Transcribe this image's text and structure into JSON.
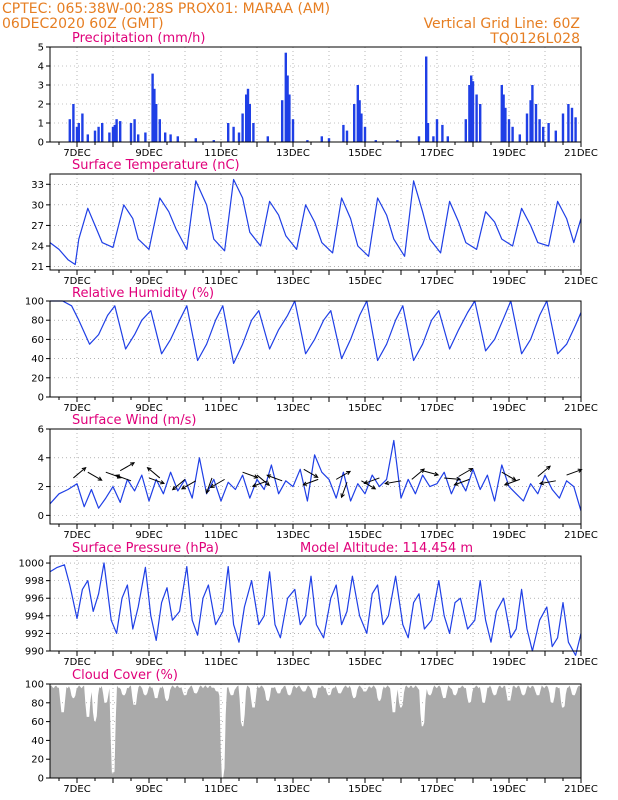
{
  "header": {
    "line1_left": "CPTEC:   065:38W-00:28S   PROX01: MARAA (AM)",
    "line2_left": "06DEC2020 60Z (GMT)",
    "line2_right": "Vertical Grid Line: 60Z",
    "line3_right": "TQ0126L028"
  },
  "colors": {
    "header": "#e67e22",
    "title": "#e0007a",
    "series": "#1f3fe6",
    "cloud": "#aaaaaa",
    "grid": "#888888"
  },
  "x_ticks": [
    "7DEC",
    "9DEC",
    "11DEC",
    "13DEC",
    "15DEC",
    "17DEC",
    "19DEC",
    "21DEC"
  ],
  "chart_data": [
    {
      "type": "bar",
      "name": "precip",
      "title": "Precipitation (mm/h)",
      "ylim": [
        0,
        5
      ],
      "yticks": [
        "0",
        "1",
        "2",
        "3",
        "4",
        "5"
      ],
      "x_range_days": [
        6.25,
        21
      ],
      "color": "#1f3fe6",
      "events": [
        [
          6.8,
          1.2
        ],
        [
          6.9,
          2.0
        ],
        [
          7.0,
          0.8
        ],
        [
          7.05,
          1.0
        ],
        [
          7.15,
          1.5
        ],
        [
          7.3,
          0.4
        ],
        [
          7.5,
          0.6
        ],
        [
          7.6,
          0.8
        ],
        [
          7.7,
          1.0
        ],
        [
          7.9,
          0.5
        ],
        [
          8.0,
          0.8
        ],
        [
          8.05,
          0.9
        ],
        [
          8.1,
          1.2
        ],
        [
          8.2,
          1.1
        ],
        [
          8.5,
          1.0
        ],
        [
          8.6,
          1.2
        ],
        [
          8.7,
          0.4
        ],
        [
          8.9,
          0.5
        ],
        [
          9.1,
          3.6
        ],
        [
          9.15,
          2.8
        ],
        [
          9.2,
          2.0
        ],
        [
          9.3,
          1.2
        ],
        [
          9.45,
          0.5
        ],
        [
          9.6,
          0.4
        ],
        [
          9.8,
          0.3
        ],
        [
          10.3,
          0.2
        ],
        [
          10.8,
          0.1
        ],
        [
          11.2,
          1.0
        ],
        [
          11.35,
          0.8
        ],
        [
          11.5,
          0.5
        ],
        [
          11.6,
          1.5
        ],
        [
          11.7,
          2.5
        ],
        [
          11.75,
          2.8
        ],
        [
          11.8,
          2.0
        ],
        [
          11.9,
          1.0
        ],
        [
          12.3,
          0.3
        ],
        [
          12.7,
          2.2
        ],
        [
          12.8,
          4.7
        ],
        [
          12.85,
          3.5
        ],
        [
          12.9,
          2.5
        ],
        [
          13.0,
          1.2
        ],
        [
          13.4,
          0.1
        ],
        [
          13.8,
          0.3
        ],
        [
          14.0,
          0.2
        ],
        [
          14.4,
          0.9
        ],
        [
          14.5,
          0.6
        ],
        [
          14.7,
          2.0
        ],
        [
          14.8,
          3.0
        ],
        [
          14.85,
          2.2
        ],
        [
          14.9,
          1.5
        ],
        [
          15.0,
          0.8
        ],
        [
          15.3,
          0.1
        ],
        [
          15.9,
          0.1
        ],
        [
          16.5,
          0.3
        ],
        [
          16.7,
          4.5
        ],
        [
          16.75,
          1.0
        ],
        [
          16.9,
          0.3
        ],
        [
          17.0,
          1.2
        ],
        [
          17.15,
          0.9
        ],
        [
          17.3,
          0.3
        ],
        [
          17.8,
          1.2
        ],
        [
          17.9,
          3.0
        ],
        [
          17.95,
          3.5
        ],
        [
          18.0,
          3.2
        ],
        [
          18.1,
          2.5
        ],
        [
          18.2,
          2.0
        ],
        [
          18.8,
          3.0
        ],
        [
          18.85,
          2.5
        ],
        [
          18.9,
          1.8
        ],
        [
          19.0,
          1.2
        ],
        [
          19.1,
          0.8
        ],
        [
          19.3,
          0.4
        ],
        [
          19.5,
          1.5
        ],
        [
          19.6,
          2.2
        ],
        [
          19.65,
          3.0
        ],
        [
          19.75,
          2.0
        ],
        [
          19.85,
          1.2
        ],
        [
          19.95,
          0.8
        ],
        [
          20.1,
          1.0
        ],
        [
          20.3,
          0.6
        ],
        [
          20.5,
          1.5
        ],
        [
          20.65,
          2.0
        ],
        [
          20.75,
          1.8
        ],
        [
          20.85,
          1.3
        ]
      ]
    },
    {
      "type": "line",
      "name": "temperature",
      "title": "Surface Temperature (nC)",
      "ylim": [
        20.5,
        34.5
      ],
      "yticks": [
        "21",
        "24",
        "27",
        "30",
        "33"
      ],
      "x_range_days": [
        6.25,
        21
      ],
      "color": "#1f3fe6",
      "x": [
        6.25,
        6.5,
        6.75,
        6.95,
        7.05,
        7.3,
        7.5,
        7.7,
        8.0,
        8.3,
        8.55,
        8.7,
        9.0,
        9.3,
        9.55,
        9.75,
        10.05,
        10.3,
        10.6,
        10.8,
        11.1,
        11.35,
        11.6,
        11.8,
        12.1,
        12.35,
        12.6,
        12.8,
        13.1,
        13.35,
        13.6,
        13.8,
        14.1,
        14.35,
        14.6,
        14.8,
        15.1,
        15.35,
        15.6,
        15.8,
        16.1,
        16.35,
        16.6,
        16.8,
        17.1,
        17.35,
        17.6,
        17.8,
        18.1,
        18.35,
        18.6,
        18.8,
        19.1,
        19.35,
        19.6,
        19.8,
        20.1,
        20.35,
        20.6,
        20.8,
        21.0
      ],
      "y": [
        24.5,
        23.5,
        22.0,
        21.3,
        25.0,
        29.5,
        27.0,
        24.5,
        23.8,
        30.0,
        28.0,
        25.0,
        23.5,
        31.0,
        29.0,
        26.5,
        23.5,
        33.5,
        30.0,
        25.0,
        23.3,
        33.7,
        31.0,
        26.0,
        24.0,
        30.5,
        28.5,
        25.5,
        23.5,
        30.0,
        27.5,
        24.5,
        23.0,
        31.0,
        28.0,
        24.0,
        22.5,
        31.0,
        28.5,
        25.0,
        22.5,
        33.5,
        29.0,
        25.0,
        23.0,
        30.5,
        27.5,
        24.5,
        23.5,
        29.0,
        27.5,
        25.0,
        24.0,
        29.5,
        27.0,
        24.5,
        24.0,
        30.5,
        28.0,
        24.5,
        28.0
      ]
    },
    {
      "type": "line",
      "name": "humidity",
      "title": "Relative Humidity (%)",
      "ylim": [
        0,
        100
      ],
      "yticks": [
        "0",
        "20",
        "40",
        "60",
        "80",
        "100"
      ],
      "x_range_days": [
        6.25,
        21
      ],
      "color": "#1f3fe6",
      "x": [
        6.25,
        6.6,
        6.85,
        7.05,
        7.35,
        7.6,
        7.85,
        8.05,
        8.35,
        8.6,
        8.8,
        9.05,
        9.35,
        9.6,
        9.85,
        10.05,
        10.35,
        10.6,
        10.85,
        11.05,
        11.35,
        11.6,
        11.85,
        12.05,
        12.35,
        12.6,
        12.85,
        13.05,
        13.35,
        13.6,
        13.85,
        14.05,
        14.35,
        14.6,
        14.85,
        15.05,
        15.35,
        15.6,
        15.85,
        16.05,
        16.35,
        16.6,
        16.85,
        17.05,
        17.35,
        17.6,
        17.85,
        18.05,
        18.35,
        18.6,
        18.85,
        19.05,
        19.35,
        19.6,
        19.85,
        20.05,
        20.35,
        20.6,
        20.85,
        21.0
      ],
      "y": [
        100,
        100,
        95,
        80,
        55,
        65,
        85,
        95,
        50,
        65,
        80,
        90,
        45,
        60,
        80,
        95,
        38,
        55,
        80,
        95,
        35,
        55,
        80,
        90,
        50,
        70,
        85,
        100,
        45,
        60,
        80,
        90,
        40,
        60,
        85,
        100,
        38,
        55,
        80,
        95,
        38,
        55,
        80,
        90,
        50,
        70,
        88,
        100,
        48,
        60,
        82,
        100,
        45,
        60,
        85,
        100,
        45,
        55,
        75,
        88
      ]
    },
    {
      "type": "line",
      "name": "wind",
      "title": "Surface Wind (m/s)",
      "ylim": [
        -0.6,
        6
      ],
      "yticks": [
        "0",
        "2",
        "4",
        "6"
      ],
      "x_range_days": [
        6.25,
        21
      ],
      "color": "#1f3fe6",
      "x": [
        6.25,
        6.5,
        6.75,
        7.0,
        7.2,
        7.4,
        7.6,
        7.8,
        8.0,
        8.2,
        8.4,
        8.6,
        8.8,
        9.0,
        9.2,
        9.4,
        9.6,
        9.8,
        10.0,
        10.2,
        10.4,
        10.6,
        10.8,
        11.0,
        11.2,
        11.4,
        11.6,
        11.8,
        12.0,
        12.2,
        12.4,
        12.6,
        12.8,
        13.0,
        13.2,
        13.4,
        13.6,
        13.8,
        14.0,
        14.2,
        14.4,
        14.6,
        14.8,
        15.0,
        15.2,
        15.4,
        15.6,
        15.8,
        16.0,
        16.2,
        16.4,
        16.6,
        16.8,
        17.0,
        17.2,
        17.4,
        17.6,
        17.8,
        18.0,
        18.2,
        18.4,
        18.6,
        18.8,
        19.0,
        19.2,
        19.4,
        19.6,
        19.8,
        20.0,
        20.2,
        20.4,
        20.6,
        20.8,
        21.0
      ],
      "y": [
        0.8,
        1.5,
        1.8,
        2.2,
        0.6,
        1.8,
        0.5,
        1.2,
        2.0,
        0.9,
        2.5,
        1.7,
        2.8,
        1.0,
        2.5,
        1.5,
        3.0,
        1.7,
        2.5,
        1.2,
        4.0,
        1.5,
        2.5,
        1.0,
        2.3,
        1.8,
        2.8,
        1.2,
        2.5,
        1.8,
        3.5,
        1.5,
        2.4,
        2.0,
        3.2,
        1.0,
        4.2,
        3.0,
        2.5,
        1.2,
        3.0,
        1.0,
        2.2,
        1.5,
        2.8,
        2.0,
        2.5,
        5.2,
        1.2,
        2.5,
        1.5,
        2.8,
        2.0,
        2.2,
        3.0,
        1.5,
        2.6,
        1.7,
        3.2,
        1.8,
        2.8,
        1.0,
        3.5,
        2.0,
        1.5,
        1.0,
        2.2,
        1.5,
        2.8,
        1.8,
        1.2,
        2.4,
        2.0,
        0.3
      ],
      "arrows": [
        [
          6.9,
          2.6,
          40
        ],
        [
          7.3,
          3.0,
          -30
        ],
        [
          7.8,
          3.0,
          -20
        ],
        [
          8.2,
          3.1,
          30
        ],
        [
          8.5,
          2.4,
          160
        ],
        [
          9.0,
          2.6,
          -20
        ],
        [
          9.3,
          2.6,
          140
        ],
        [
          10.0,
          2.5,
          220
        ],
        [
          10.3,
          2.4,
          210
        ],
        [
          10.75,
          2.6,
          250
        ],
        [
          11.1,
          2.5,
          210
        ],
        [
          11.6,
          3.0,
          -20
        ],
        [
          12.0,
          2.8,
          -40
        ],
        [
          12.3,
          2.4,
          200
        ],
        [
          12.7,
          2.4,
          160
        ],
        [
          13.3,
          3.2,
          -30
        ],
        [
          13.7,
          2.5,
          200
        ],
        [
          14.2,
          2.5,
          30
        ],
        [
          14.5,
          2.3,
          250
        ],
        [
          14.9,
          2.4,
          -30
        ],
        [
          15.4,
          2.6,
          200
        ],
        [
          16.0,
          2.4,
          190
        ],
        [
          16.3,
          2.5,
          40
        ],
        [
          16.6,
          3.1,
          -15
        ],
        [
          17.2,
          2.6,
          -5
        ],
        [
          17.6,
          2.7,
          30
        ],
        [
          17.9,
          2.5,
          200
        ],
        [
          18.8,
          3.0,
          -30
        ],
        [
          19.3,
          2.5,
          200
        ],
        [
          19.8,
          2.7,
          40
        ],
        [
          20.3,
          2.4,
          190
        ],
        [
          20.6,
          2.8,
          20
        ]
      ]
    },
    {
      "type": "line",
      "name": "pressure",
      "title": "Surface Pressure (hPa)",
      "note": "Model Altitude: 114.454 m",
      "ylim": [
        990,
        1000.8
      ],
      "yticks": [
        "990",
        "992",
        "994",
        "996",
        "998",
        "1000"
      ],
      "x_range_days": [
        6.25,
        21
      ],
      "color": "#1f3fe6",
      "x": [
        6.25,
        6.45,
        6.65,
        6.8,
        7.0,
        7.15,
        7.3,
        7.45,
        7.6,
        7.75,
        7.95,
        8.1,
        8.25,
        8.4,
        8.55,
        8.7,
        8.9,
        9.05,
        9.2,
        9.35,
        9.5,
        9.65,
        9.85,
        10.05,
        10.2,
        10.35,
        10.5,
        10.65,
        10.85,
        11.05,
        11.2,
        11.35,
        11.5,
        11.65,
        11.85,
        12.05,
        12.2,
        12.35,
        12.5,
        12.65,
        12.85,
        13.05,
        13.2,
        13.35,
        13.5,
        13.65,
        13.85,
        14.05,
        14.2,
        14.35,
        14.5,
        14.65,
        14.85,
        15.05,
        15.2,
        15.35,
        15.5,
        15.65,
        15.85,
        16.05,
        16.2,
        16.35,
        16.5,
        16.65,
        16.85,
        17.05,
        17.2,
        17.35,
        17.5,
        17.65,
        17.85,
        18.05,
        18.2,
        18.35,
        18.5,
        18.65,
        18.85,
        19.05,
        19.2,
        19.35,
        19.5,
        19.65,
        19.85,
        20.05,
        20.2,
        20.35,
        20.5,
        20.65,
        20.85,
        21.0
      ],
      "y": [
        999.0,
        999.5,
        999.8,
        997.5,
        993.7,
        997.0,
        998.0,
        994.5,
        996.5,
        1000.0,
        993.5,
        992.0,
        996.0,
        997.5,
        992.5,
        995.0,
        999.5,
        994.0,
        991.2,
        995.5,
        997.2,
        993.5,
        994.5,
        999.6,
        993.5,
        991.8,
        996.0,
        997.5,
        993.0,
        994.5,
        999.6,
        993.0,
        991.0,
        995.0,
        998.0,
        993.0,
        994.0,
        999.0,
        993.0,
        991.5,
        996.0,
        997.0,
        993.0,
        994.0,
        998.5,
        993.0,
        991.5,
        996.0,
        997.5,
        993.0,
        994.5,
        998.5,
        994.0,
        992.0,
        996.5,
        997.5,
        993.0,
        994.0,
        998.5,
        993.0,
        991.5,
        995.5,
        996.5,
        992.5,
        993.5,
        998.0,
        994.0,
        992.0,
        995.5,
        996.0,
        992.5,
        993.5,
        998.0,
        993.5,
        991.0,
        994.5,
        996.0,
        991.5,
        992.5,
        997.0,
        992.5,
        990.0,
        993.5,
        995.0,
        990.5,
        991.5,
        995.5,
        991.0,
        989.5,
        992.0
      ]
    },
    {
      "type": "area",
      "name": "cloud",
      "title": "Cloud Cover (%)",
      "ylim": [
        0,
        100
      ],
      "yticks": [
        "0",
        "20",
        "40",
        "60",
        "80",
        "100"
      ],
      "x_range_days": [
        6.25,
        21
      ],
      "color": "#aaaaaa",
      "base_level": 97,
      "dips": [
        [
          6.6,
          70
        ],
        [
          6.9,
          85
        ],
        [
          7.3,
          65
        ],
        [
          7.5,
          60
        ],
        [
          7.8,
          80
        ],
        [
          8.0,
          5
        ],
        [
          8.3,
          88
        ],
        [
          8.6,
          78
        ],
        [
          8.9,
          88
        ],
        [
          9.2,
          85
        ],
        [
          9.5,
          82
        ],
        [
          10.0,
          88
        ],
        [
          10.3,
          90
        ],
        [
          10.9,
          92
        ],
        [
          11.05,
          0
        ],
        [
          11.3,
          88
        ],
        [
          11.6,
          55
        ],
        [
          11.9,
          75
        ],
        [
          12.3,
          82
        ],
        [
          12.6,
          90
        ],
        [
          12.9,
          88
        ],
        [
          13.3,
          92
        ],
        [
          13.6,
          85
        ],
        [
          14.0,
          88
        ],
        [
          14.3,
          90
        ],
        [
          14.7,
          85
        ],
        [
          15.0,
          92
        ],
        [
          15.4,
          82
        ],
        [
          15.8,
          70
        ],
        [
          16.0,
          75
        ],
        [
          16.6,
          55
        ],
        [
          16.8,
          88
        ],
        [
          17.2,
          85
        ],
        [
          17.5,
          88
        ],
        [
          17.9,
          80
        ],
        [
          18.3,
          80
        ],
        [
          18.6,
          88
        ],
        [
          19.0,
          82
        ],
        [
          19.4,
          88
        ],
        [
          19.8,
          88
        ],
        [
          20.2,
          80
        ],
        [
          20.5,
          75
        ],
        [
          20.8,
          88
        ]
      ]
    }
  ]
}
